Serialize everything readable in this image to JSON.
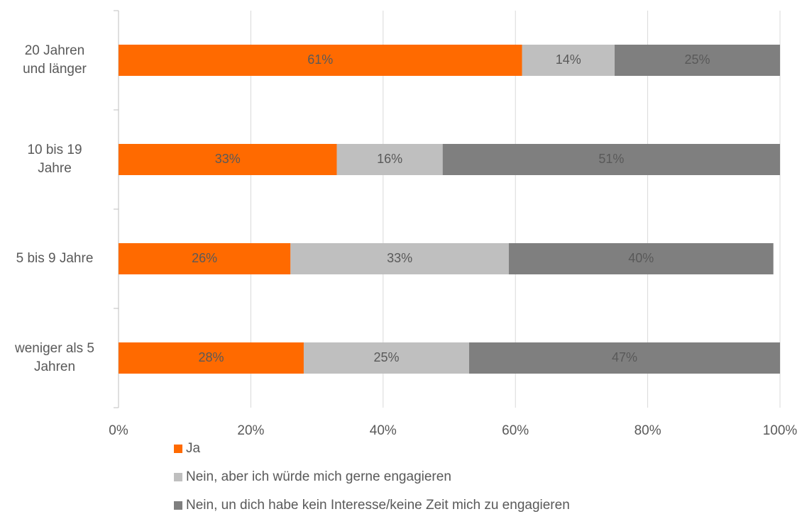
{
  "chart_data": {
    "type": "stacked_bar_horizontal",
    "categories": [
      "20 Jahren\nund länger",
      "10 bis 19\nJahre",
      "5 bis 9 Jahre",
      "weniger als 5\nJahren"
    ],
    "series": [
      {
        "name": "Ja",
        "color": "#ff6a00",
        "values": [
          61,
          33,
          26,
          28
        ],
        "value_labels": [
          "61%",
          "33%",
          "26%",
          "28%"
        ]
      },
      {
        "name": "Nein, aber ich würde mich gerne engagieren",
        "color": "#bfbfbf",
        "values": [
          14,
          16,
          33,
          25
        ],
        "value_labels": [
          "14%",
          "16%",
          "33%",
          "25%"
        ]
      },
      {
        "name": "Nein, un dich habe kein Interesse/keine Zeit mich zu engagieren",
        "color": "#7f7f7f",
        "values": [
          25,
          51,
          40,
          47
        ],
        "value_labels": [
          "25%",
          "51%",
          "40%",
          "47%"
        ]
      }
    ],
    "xlim": [
      0,
      100
    ],
    "xticks": [
      {
        "value": 0,
        "label": "0%"
      },
      {
        "value": 20,
        "label": "20%"
      },
      {
        "value": 40,
        "label": "40%"
      },
      {
        "value": 60,
        "label": "60%"
      },
      {
        "value": 80,
        "label": "80%"
      },
      {
        "value": 100,
        "label": "100%"
      }
    ],
    "grid": true,
    "legend": "bottom"
  }
}
